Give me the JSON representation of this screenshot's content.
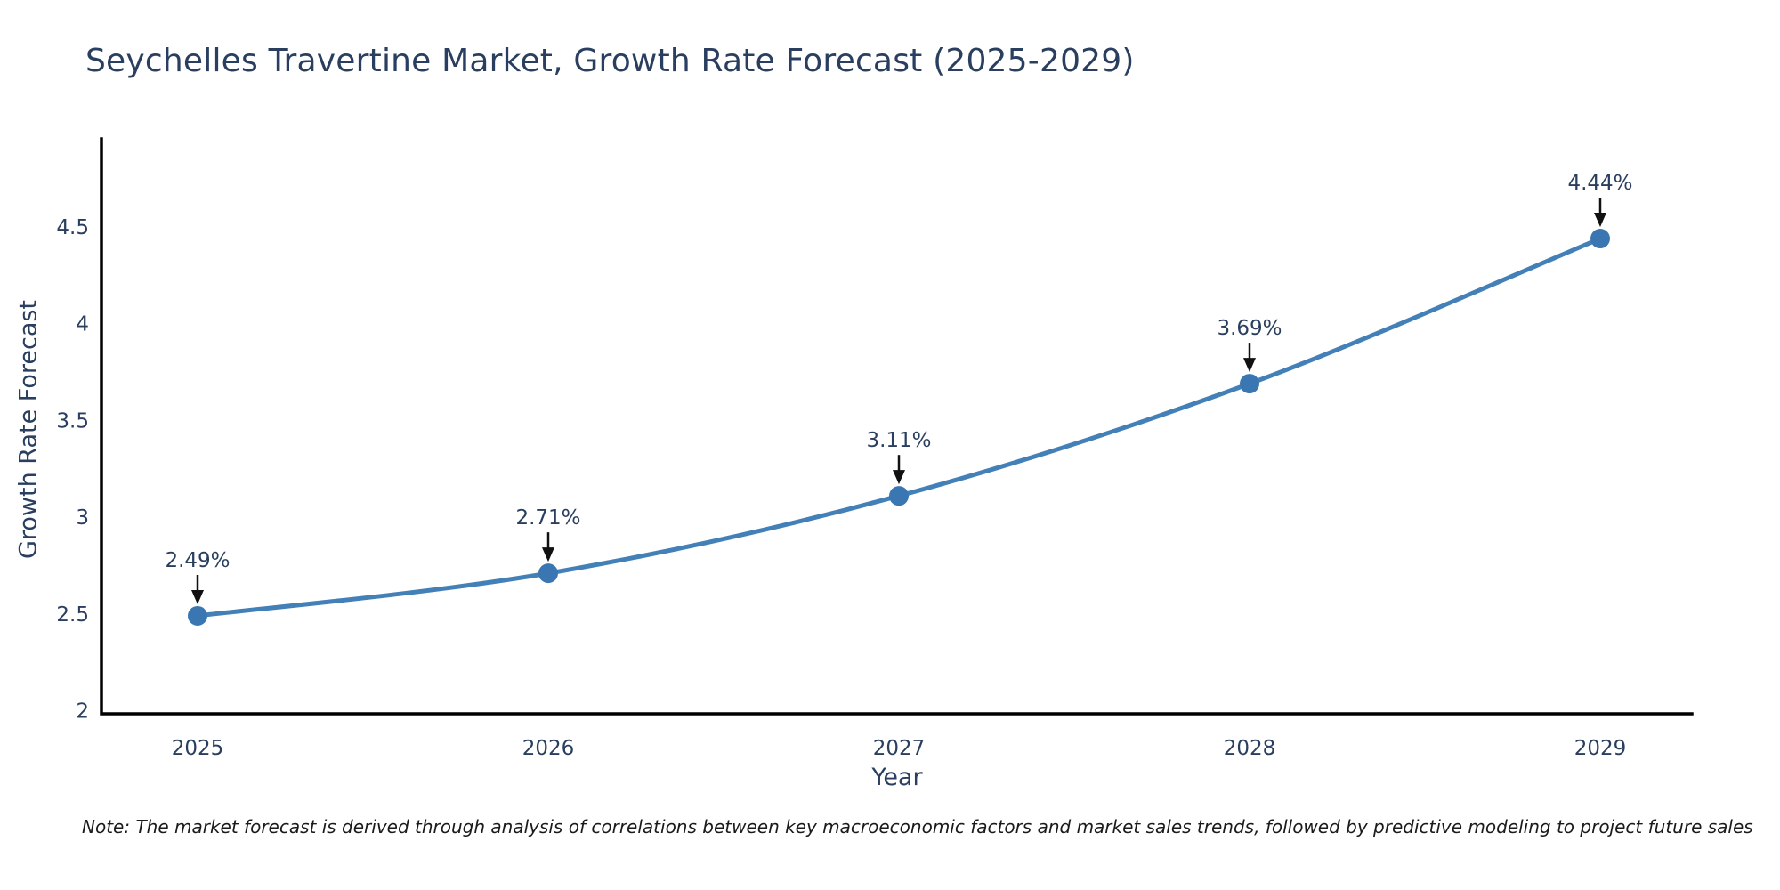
{
  "chart_data": {
    "type": "line",
    "title": "Seychelles Travertine Market, Growth Rate Forecast (2025-2029)",
    "xlabel": "Year",
    "ylabel": "Growth Rate Forecast",
    "x": [
      2025,
      2026,
      2027,
      2028,
      2029
    ],
    "y": [
      2.49,
      2.71,
      3.11,
      3.69,
      4.44
    ],
    "point_labels": [
      "2.49%",
      "2.71%",
      "3.11%",
      "3.69%",
      "4.44%"
    ],
    "yticks": [
      2,
      2.5,
      3,
      3.5,
      4,
      4.5
    ],
    "ylim": [
      2,
      4.97
    ],
    "grid": false,
    "legend": false,
    "line_shape": "spline",
    "colors": {
      "line": "#4380B8",
      "marker": "#3A77B2",
      "axis": "#000000",
      "text": "#2A3F5F",
      "arrow": "#111111"
    }
  },
  "note": "Note: The market forecast is derived through analysis of correlations between key macroeconomic factors and market sales trends, followed by predictive modeling to project future sales"
}
